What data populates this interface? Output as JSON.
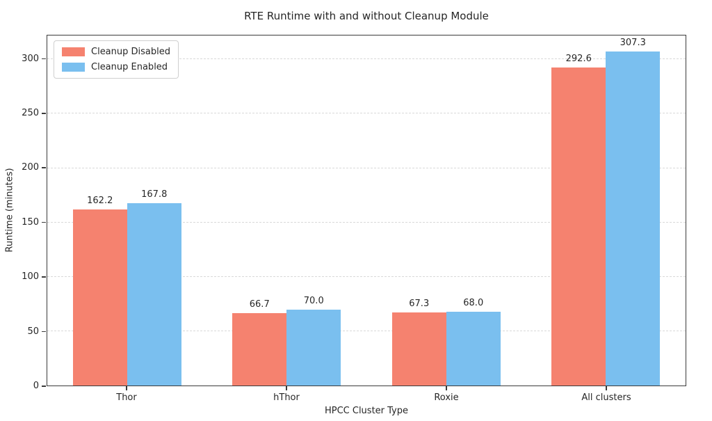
{
  "chart_data": {
    "type": "bar",
    "title": "RTE Runtime with and without Cleanup Module",
    "xlabel": "HPCC Cluster Type",
    "ylabel": "Runtime (minutes)",
    "categories": [
      "Thor",
      "hThor",
      "Roxie",
      "All clusters"
    ],
    "series": [
      {
        "name": "Cleanup Disabled",
        "color": "#F5826F",
        "values": [
          162.2,
          66.7,
          67.3,
          292.6
        ],
        "labels": [
          "162.2",
          "66.7",
          "67.3",
          "292.6"
        ]
      },
      {
        "name": "Cleanup Enabled",
        "color": "#7ABFEF",
        "values": [
          167.8,
          70.0,
          68.0,
          307.3
        ],
        "labels": [
          "167.8",
          "70.0",
          "68.0",
          "307.3"
        ]
      }
    ],
    "ylim": [
      0,
      322
    ],
    "yticks": [
      0,
      50,
      100,
      150,
      200,
      250,
      300
    ],
    "grid": "horizontal-dashed",
    "legend_position": "upper-left",
    "spine_color": "#3a3a3a",
    "grid_color": "#d9d9d9",
    "text_color": "#262626"
  }
}
